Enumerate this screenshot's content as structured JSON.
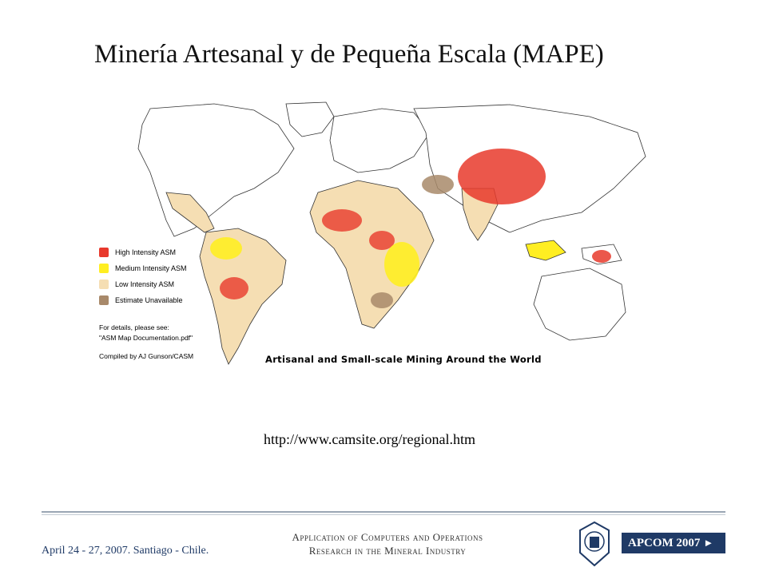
{
  "slide": {
    "title": "Minería Artesanal  y de Pequeña Escala (MAPE)",
    "source_url": "http://www.camsite.org/regional.htm"
  },
  "map": {
    "caption": "Artisanal and Small-scale Mining Around the World",
    "legend": [
      {
        "label": "High Intensity ASM",
        "color": "#e8392c"
      },
      {
        "label": "Medium Intensity ASM",
        "color": "#ffee22"
      },
      {
        "label": "Low Intensity ASM",
        "color": "#f5deb3"
      },
      {
        "label": "Estimate Unavailable",
        "color": "#a8896a"
      }
    ],
    "notes": {
      "line1": "For details, please see:",
      "line2": "\"ASM Map Documentation.pdf\"",
      "compiled": "Compiled by AJ Gunson/CASM"
    }
  },
  "footer": {
    "date_location": "April 24 - 27, 2007. Santiago - Chile.",
    "conference_line1": "Application of Computers and Operations",
    "conference_line2": "Research in the Mineral Industry",
    "logo_text": "APCOM 2007"
  }
}
